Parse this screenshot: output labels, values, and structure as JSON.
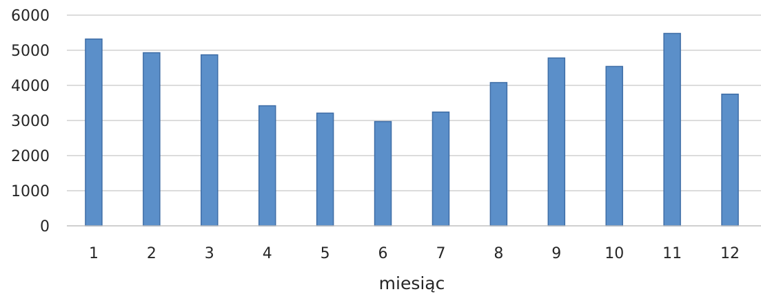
{
  "chart_data": {
    "type": "bar",
    "title": "",
    "xlabel": "miesiąc",
    "ylabel": "",
    "categories": [
      "1",
      "2",
      "3",
      "4",
      "5",
      "6",
      "7",
      "8",
      "9",
      "10",
      "11",
      "12"
    ],
    "series": [
      {
        "values": [
          5320,
          4930,
          4870,
          3420,
          3210,
          2970,
          3240,
          4080,
          4780,
          4540,
          5480,
          3750
        ]
      }
    ],
    "ylim": [
      0,
      6000
    ],
    "yticks": [
      0,
      1000,
      2000,
      3000,
      4000,
      5000,
      6000
    ],
    "grid": true,
    "legend": "none",
    "colors": {
      "bar_fill": "#5B8FC9",
      "bar_stroke": "#3E6DA6",
      "gridline": "#C8C8C8",
      "axis_line": "#BFBFBF",
      "text": "#262626"
    }
  }
}
